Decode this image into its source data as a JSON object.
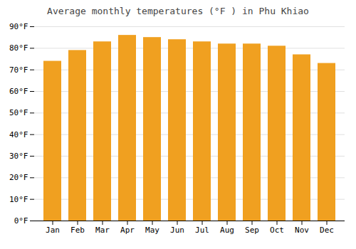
{
  "chart_data": {
    "type": "bar",
    "title": "Average monthly temperatures (°F ) in Phu Khiao",
    "categories": [
      "Jan",
      "Feb",
      "Mar",
      "Apr",
      "May",
      "Jun",
      "Jul",
      "Aug",
      "Sep",
      "Oct",
      "Nov",
      "Dec"
    ],
    "values": [
      74,
      79,
      83,
      86,
      85,
      84,
      83,
      82,
      82,
      81,
      77,
      73
    ],
    "color": "#F0A020",
    "ylim": [
      0,
      90
    ],
    "yticks": [
      {
        "value": 0,
        "label": "0°F"
      },
      {
        "value": 10,
        "label": "10°F"
      },
      {
        "value": 20,
        "label": "20°F"
      },
      {
        "value": 30,
        "label": "30°F"
      },
      {
        "value": 40,
        "label": "40°F"
      },
      {
        "value": 50,
        "label": "50°F"
      },
      {
        "value": 60,
        "label": "60°F"
      },
      {
        "value": 70,
        "label": "70°F"
      },
      {
        "value": 80,
        "label": "80°F"
      },
      {
        "value": 90,
        "label": "90°F"
      }
    ],
    "grid": true
  }
}
